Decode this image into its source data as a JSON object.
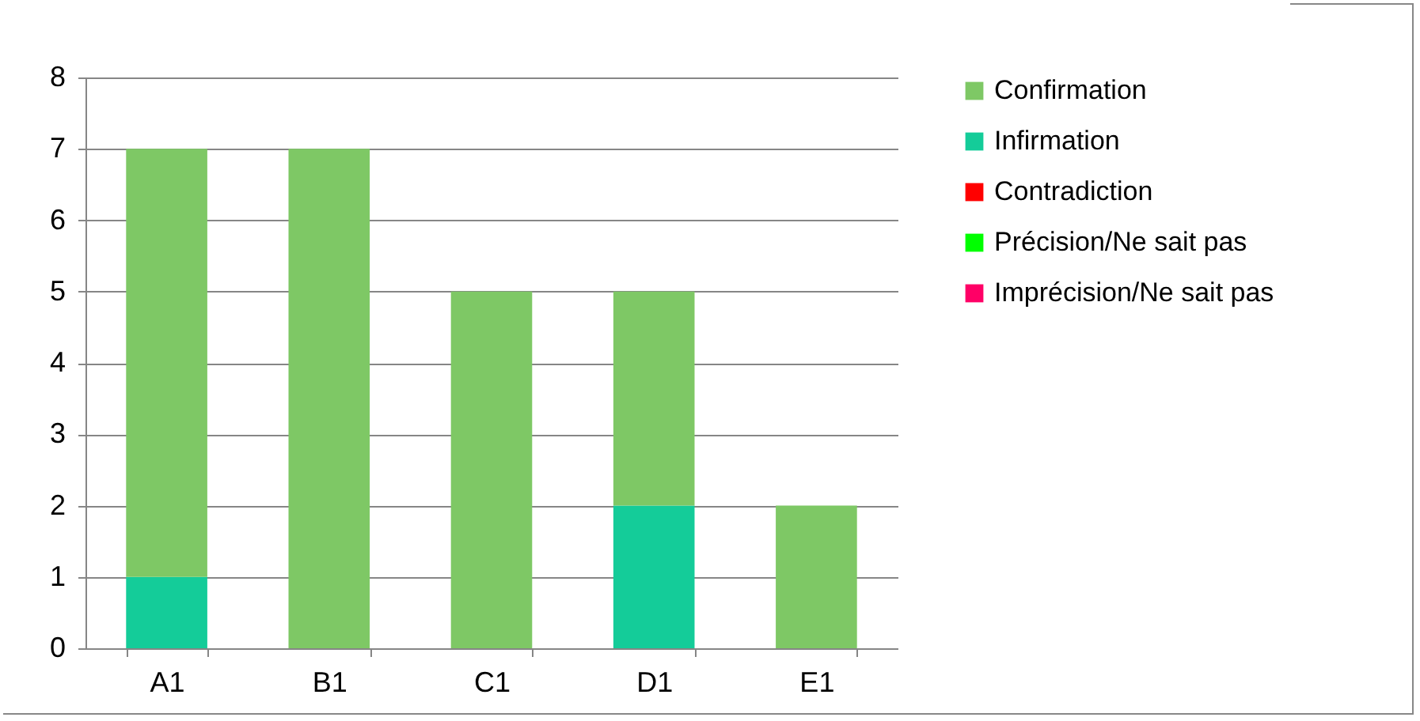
{
  "chart_data": {
    "type": "bar",
    "stacked": true,
    "categories": [
      "A1",
      "B1",
      "C1",
      "D1",
      "E1"
    ],
    "series": [
      {
        "name": "Imprécision/Ne sait pas",
        "color": "#ff0066",
        "values": [
          0,
          0,
          0,
          0,
          0
        ]
      },
      {
        "name": "Précision/Ne sait pas",
        "color": "#00ff00",
        "values": [
          0,
          0,
          0,
          0,
          0
        ]
      },
      {
        "name": "Contradiction",
        "color": "#ff0000",
        "values": [
          0,
          0,
          0,
          0,
          0
        ]
      },
      {
        "name": "Infirmation",
        "color": "#14cc99",
        "values": [
          1,
          0,
          0,
          2,
          0
        ]
      },
      {
        "name": "Confirmation",
        "color": "#7ec865",
        "values": [
          6,
          7,
          5,
          3,
          2
        ]
      }
    ],
    "ylim": [
      0,
      8
    ],
    "yticks": [
      0,
      1,
      2,
      3,
      4,
      5,
      6,
      7,
      8
    ],
    "grid": "y",
    "legend": "right"
  }
}
